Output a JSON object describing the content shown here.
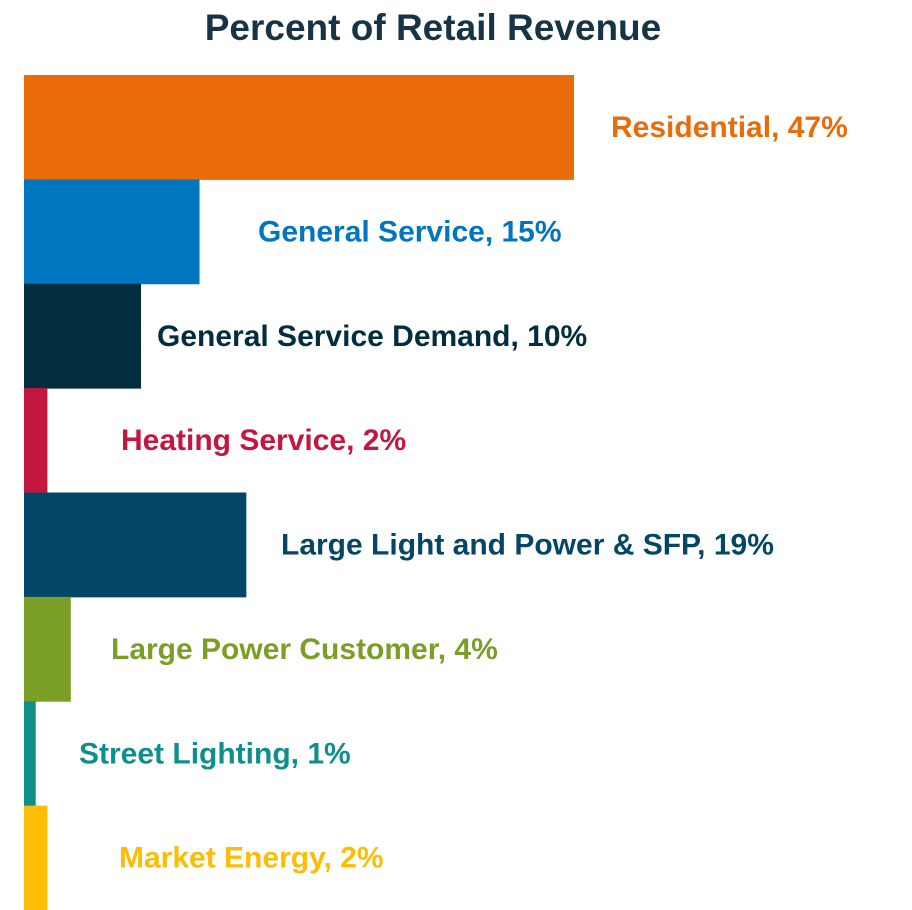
{
  "chart_data": {
    "type": "bar",
    "orientation": "horizontal",
    "title": "Percent of Retail Revenue",
    "values": [
      47,
      15,
      10,
      2,
      19,
      4,
      1,
      2
    ],
    "value_labels": [
      "Residential, 47%",
      "General Service, 15%",
      "General Service Demand, 10%",
      "Heating Service, 2%",
      "Large Light and Power & SFP, 19%",
      "Large Power Customer, 4%",
      "Street Lighting, 1%",
      "Market Energy, 2%"
    ],
    "colors": [
      "#ea6b0a",
      "#0076c0",
      "#022d3e",
      "#c4173f",
      "#044667",
      "#7b9e26",
      "#0e8f8c",
      "#fbbd05"
    ]
  }
}
